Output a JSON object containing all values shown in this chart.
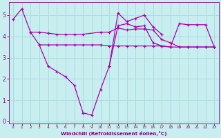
{
  "background_color": "#c8eef0",
  "grid_color": "#aadddd",
  "line_color": "#aa00aa",
  "xlabel": "Windchill (Refroidissement éolien,°C)",
  "xlabel_color": "#880088",
  "tick_color": "#880088",
  "ylim": [
    -0.1,
    5.6
  ],
  "xlim": [
    -0.5,
    23.5
  ],
  "yticks": [
    0,
    1,
    2,
    3,
    4,
    5
  ],
  "xticks": [
    0,
    1,
    2,
    3,
    4,
    5,
    6,
    7,
    8,
    9,
    10,
    11,
    12,
    13,
    14,
    15,
    16,
    17,
    18,
    19,
    20,
    21,
    22,
    23
  ],
  "series1_x": [
    0,
    1,
    2,
    3,
    4,
    5,
    6,
    7,
    8,
    9,
    10,
    11,
    12,
    13,
    14,
    15,
    16,
    17
  ],
  "series1_y": [
    4.8,
    5.3,
    4.2,
    3.6,
    2.6,
    2.35,
    2.1,
    1.7,
    0.4,
    0.3,
    1.5,
    2.6,
    5.1,
    4.7,
    4.85,
    5.0,
    4.45,
    4.1
  ],
  "series2_x": [
    2,
    3,
    4,
    5,
    6,
    7,
    8,
    10,
    11,
    12,
    13,
    14,
    15,
    16,
    17,
    18,
    19,
    20,
    21,
    22,
    23
  ],
  "series2_y": [
    4.2,
    4.2,
    4.15,
    4.1,
    4.1,
    4.1,
    4.1,
    4.2,
    4.2,
    4.4,
    4.3,
    4.35,
    4.35,
    4.3,
    3.85,
    3.7,
    3.5,
    3.5,
    3.5,
    3.5,
    3.5
  ],
  "series3_x": [
    3,
    4,
    5,
    6,
    7,
    8,
    9,
    10,
    11,
    12,
    13,
    14,
    15,
    16,
    17,
    18,
    19,
    20,
    21,
    22,
    23
  ],
  "series3_y": [
    3.6,
    3.6,
    3.6,
    3.6,
    3.6,
    3.6,
    3.6,
    3.6,
    3.55,
    3.55,
    3.55,
    3.55,
    3.55,
    3.55,
    3.55,
    3.5,
    3.5,
    3.5,
    3.5,
    3.5,
    3.5
  ],
  "series4_x": [
    11,
    12,
    13,
    14,
    15,
    16,
    17,
    18,
    19,
    20,
    21,
    22,
    23
  ],
  "series4_y": [
    2.6,
    4.5,
    4.6,
    4.45,
    4.5,
    3.7,
    3.55,
    3.5,
    4.6,
    4.55,
    4.55,
    4.55,
    3.5
  ]
}
